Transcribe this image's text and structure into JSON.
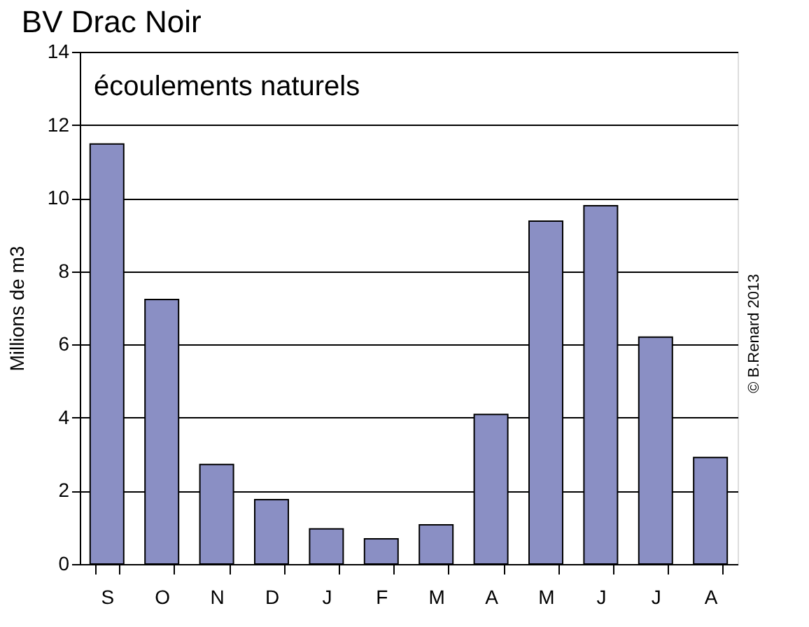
{
  "chart_data": {
    "type": "bar",
    "title": "BV Drac Noir",
    "subtitle": "écoulements naturels",
    "ylabel": "Millions de m3",
    "categories": [
      "S",
      "O",
      "N",
      "D",
      "J",
      "F",
      "M",
      "A",
      "M",
      "J",
      "J",
      "A"
    ],
    "values": [
      11.48,
      7.23,
      2.72,
      1.76,
      0.96,
      0.69,
      1.07,
      4.09,
      9.37,
      9.79,
      6.2,
      2.91
    ],
    "color": "#8a8fc4",
    "ylim": [
      0,
      14
    ],
    "yticks": [
      0,
      2,
      4,
      6,
      8,
      10,
      12,
      14
    ],
    "grid": "y",
    "annotations": [
      "© B.Renard 2013"
    ]
  }
}
